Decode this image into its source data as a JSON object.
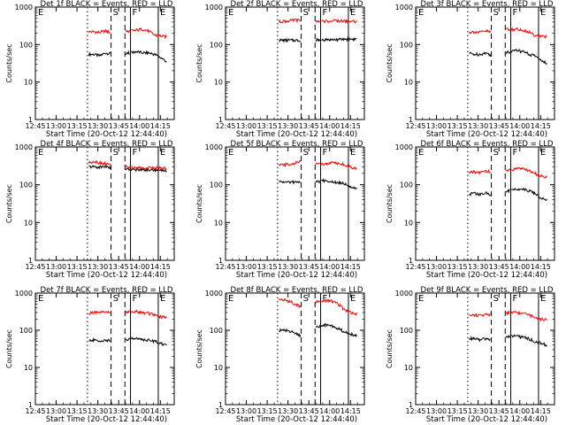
{
  "figure": {
    "start_time_label": "Start Time (20-Oct-12 12:44:40)",
    "colors": {
      "events": "#000000",
      "lld": "#ff0000",
      "axes": "#000000",
      "background": "#ffffff"
    }
  },
  "chart_data": [
    {
      "type": "line",
      "title": "Det 1f BLACK = Events, RED = LLD",
      "ylabel": "Counts/sec",
      "xlabel": "Start Time (20-Oct-12 12:44:40)",
      "x_ticks": [
        "12:45",
        "13:00",
        "13:15",
        "13:30",
        "13:45",
        "14:00",
        "14:15"
      ],
      "y_ticks": [
        "1",
        "10",
        "100",
        "1000"
      ],
      "ylim": [
        1,
        1000
      ],
      "y_scale": "log",
      "markers": [
        "E",
        "S",
        "F",
        "E"
      ],
      "series": [
        {
          "name": "BLACK = Events",
          "values": [
            55,
            55,
            50,
            60,
            55,
            60,
            60,
            60,
            65,
            60,
            60,
            55,
            45,
            35
          ]
        },
        {
          "name": "RED = LLD",
          "values": [
            220,
            220,
            210,
            230,
            200,
            240,
            230,
            230,
            240,
            260,
            230,
            180,
            170,
            160
          ]
        }
      ]
    },
    {
      "type": "line",
      "title": "Det 2f BLACK = Events, RED = LLD",
      "ylabel": "Counts/sec",
      "xlabel": "Start Time (20-Oct-12 12:44:40)",
      "x_ticks": [
        "12:45",
        "13:00",
        "13:15",
        "13:30",
        "13:45",
        "14:00",
        "14:15"
      ],
      "y_ticks": [
        "1",
        "10",
        "100",
        "1000"
      ],
      "ylim": [
        1,
        1000
      ],
      "y_scale": "log",
      "markers": [
        "E",
        "S",
        "F",
        "E"
      ],
      "series": [
        {
          "name": "BLACK = Events",
          "values": [
            130,
            130,
            130,
            130,
            130,
            130,
            135,
            135,
            135,
            135,
            135,
            140,
            140,
            140
          ]
        },
        {
          "name": "RED = LLD",
          "values": [
            400,
            420,
            430,
            450,
            420,
            440,
            420,
            420,
            420,
            430,
            430,
            420,
            420,
            410
          ]
        }
      ]
    },
    {
      "type": "line",
      "title": "Det 3f BLACK = Events, RED = LLD",
      "ylabel": "Counts/sec",
      "xlabel": "Start Time (20-Oct-12 12:44:40)",
      "x_ticks": [
        "12:45",
        "13:00",
        "13:15",
        "13:30",
        "13:45",
        "14:00",
        "14:15"
      ],
      "y_ticks": [
        "1",
        "10",
        "100",
        "1000"
      ],
      "ylim": [
        1,
        1000
      ],
      "y_scale": "log",
      "markers": [
        "E",
        "S",
        "F",
        "E"
      ],
      "series": [
        {
          "name": "BLACK = Events",
          "values": [
            60,
            55,
            55,
            60,
            50,
            60,
            60,
            65,
            70,
            65,
            55,
            50,
            40,
            30
          ]
        },
        {
          "name": "RED = LLD",
          "values": [
            210,
            220,
            210,
            230,
            210,
            240,
            250,
            250,
            260,
            240,
            220,
            180,
            170,
            160
          ]
        }
      ]
    },
    {
      "type": "line",
      "title": "Det 4f BLACK = Events, RED = LLD",
      "ylabel": "Counts/sec",
      "xlabel": "Start Time (20-Oct-12 12:44:40)",
      "x_ticks": [
        "12:45",
        "13:00",
        "13:15",
        "13:30",
        "13:45",
        "14:00",
        "14:15"
      ],
      "y_ticks": [
        "1",
        "10",
        "100",
        "1000"
      ],
      "ylim": [
        1,
        1000
      ],
      "y_scale": "log",
      "markers": [
        "E",
        "S",
        "F",
        "E"
      ],
      "series": [
        {
          "name": "BLACK = Events",
          "values": [
            300,
            300,
            290,
            310,
            260,
            250,
            250,
            250,
            250,
            250,
            250,
            250,
            240,
            240
          ]
        },
        {
          "name": "RED = LLD",
          "values": [
            370,
            420,
            380,
            360,
            330,
            300,
            300,
            290,
            280,
            280,
            280,
            280,
            280,
            270
          ]
        }
      ]
    },
    {
      "type": "line",
      "title": "Det 5f BLACK = Events, RED = LLD",
      "ylabel": "Counts/sec",
      "xlabel": "Start Time (20-Oct-12 12:44:40)",
      "x_ticks": [
        "12:45",
        "13:00",
        "13:15",
        "13:30",
        "13:45",
        "14:00",
        "14:15"
      ],
      "y_ticks": [
        "1",
        "10",
        "100",
        "1000"
      ],
      "ylim": [
        1,
        1000
      ],
      "y_scale": "log",
      "markers": [
        "E",
        "S",
        "F",
        "E"
      ],
      "series": [
        {
          "name": "BLACK = Events",
          "values": [
            120,
            120,
            115,
            120,
            110,
            120,
            120,
            125,
            130,
            120,
            115,
            110,
            90,
            80
          ]
        },
        {
          "name": "RED = LLD",
          "values": [
            320,
            340,
            350,
            380,
            420,
            380,
            360,
            360,
            370,
            380,
            380,
            340,
            290,
            280
          ]
        }
      ]
    },
    {
      "type": "line",
      "title": "Det 6f BLACK = Events, RED = LLD",
      "ylabel": "Counts/sec",
      "xlabel": "Start Time (20-Oct-12 12:44:40)",
      "x_ticks": [
        "12:45",
        "13:00",
        "13:15",
        "13:30",
        "13:45",
        "14:00",
        "14:15"
      ],
      "y_ticks": [
        "1",
        "10",
        "100",
        "1000"
      ],
      "ylim": [
        1,
        1000
      ],
      "y_scale": "log",
      "markers": [
        "E",
        "S",
        "F",
        "E"
      ],
      "series": [
        {
          "name": "BLACK = Events",
          "values": [
            55,
            60,
            55,
            60,
            55,
            60,
            65,
            70,
            75,
            80,
            70,
            60,
            45,
            40
          ]
        },
        {
          "name": "RED = LLD",
          "values": [
            200,
            220,
            210,
            230,
            220,
            230,
            240,
            250,
            260,
            270,
            240,
            200,
            170,
            160
          ]
        }
      ]
    },
    {
      "type": "line",
      "title": "Det 7f BLACK = Events, RED = LLD",
      "ylabel": "Counts/sec",
      "xlabel": "Start Time (20-Oct-12 12:44:40)",
      "x_ticks": [
        "12:45",
        "13:00",
        "13:15",
        "13:30",
        "13:45",
        "14:00",
        "14:15"
      ],
      "y_ticks": [
        "1",
        "10",
        "100",
        "1000"
      ],
      "ylim": [
        1,
        1000
      ],
      "y_scale": "log",
      "markers": [
        "E",
        "S",
        "F",
        "E"
      ],
      "series": [
        {
          "name": "BLACK = Events",
          "values": [
            50,
            55,
            50,
            55,
            50,
            55,
            55,
            60,
            60,
            55,
            55,
            50,
            45,
            40
          ]
        },
        {
          "name": "RED = LLD",
          "values": [
            280,
            300,
            290,
            310,
            290,
            320,
            310,
            310,
            320,
            300,
            290,
            250,
            230,
            220
          ]
        }
      ]
    },
    {
      "type": "line",
      "title": "Det 8f BLACK = Events, RED = LLD",
      "ylabel": "Counts/sec",
      "xlabel": "Start Time (20-Oct-12 12:44:40)",
      "x_ticks": [
        "12:45",
        "13:00",
        "13:15",
        "13:30",
        "13:45",
        "14:00",
        "14:15"
      ],
      "y_ticks": [
        "1",
        "10",
        "100",
        "1000"
      ],
      "ylim": [
        1,
        1000
      ],
      "y_scale": "log",
      "markers": [
        "E",
        "S",
        "F",
        "E"
      ],
      "series": [
        {
          "name": "BLACK = Events",
          "values": [
            100,
            100,
            95,
            80,
            70,
            100,
            110,
            130,
            140,
            130,
            110,
            90,
            80,
            70
          ]
        },
        {
          "name": "RED = LLD",
          "values": [
            700,
            650,
            600,
            500,
            400,
            500,
            550,
            600,
            620,
            600,
            500,
            350,
            300,
            280
          ]
        }
      ]
    },
    {
      "type": "line",
      "title": "Det 9f BLACK = Events, RED = LLD",
      "ylabel": "Counts/sec",
      "xlabel": "Start Time (20-Oct-12 12:44:40)",
      "x_ticks": [
        "12:45",
        "13:00",
        "13:15",
        "13:30",
        "13:45",
        "14:00",
        "14:15"
      ],
      "y_ticks": [
        "1",
        "10",
        "100",
        "1000"
      ],
      "ylim": [
        1,
        1000
      ],
      "y_scale": "log",
      "markers": [
        "E",
        "S",
        "F",
        "E"
      ],
      "series": [
        {
          "name": "BLACK = Events",
          "values": [
            60,
            60,
            55,
            60,
            55,
            60,
            65,
            70,
            70,
            65,
            60,
            50,
            45,
            40
          ]
        },
        {
          "name": "RED = LLD",
          "values": [
            250,
            260,
            250,
            270,
            260,
            280,
            290,
            300,
            300,
            280,
            260,
            220,
            200,
            190
          ]
        }
      ]
    }
  ]
}
